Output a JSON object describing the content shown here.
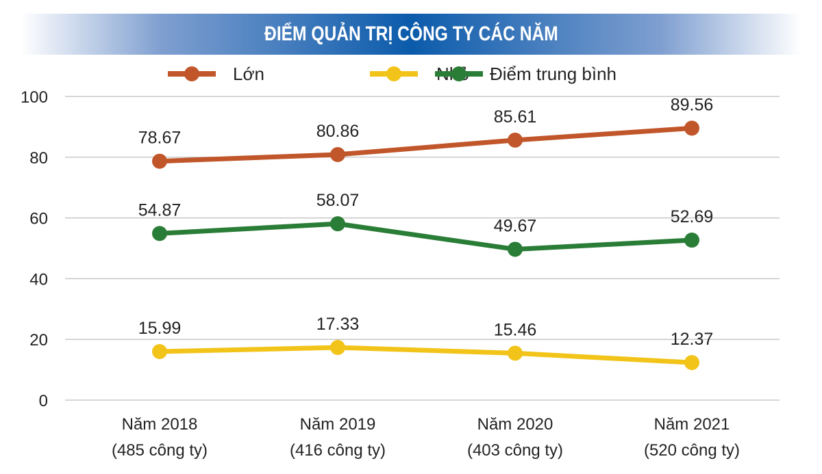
{
  "chart_data": {
    "type": "line",
    "title": "ĐIỂM QUẢN TRỊ CÔNG TY CÁC NĂM",
    "categories": [
      [
        "Năm 2018",
        "(485 công ty)"
      ],
      [
        "Năm 2019",
        "(416 công ty)"
      ],
      [
        "Năm 2020",
        "(403 công ty)"
      ],
      [
        "Năm 2021",
        "(520 công ty)"
      ]
    ],
    "ylim": [
      0,
      100
    ],
    "yticks": [
      "0",
      "20",
      "40",
      "60",
      "80",
      "100"
    ],
    "grid": true,
    "legend_position": "top-center",
    "series": [
      {
        "name": "Lớn",
        "color": "#c0562a",
        "values": [
          78.67,
          80.86,
          85.61,
          89.56
        ],
        "labels": [
          "78.67",
          "80.86",
          "85.61",
          "89.56"
        ]
      },
      {
        "name": "Nhỏ",
        "color": "#f2c41a",
        "values": [
          15.99,
          17.33,
          15.46,
          12.37
        ],
        "labels": [
          "15.99",
          "17.33",
          "15.46",
          "12.37"
        ]
      },
      {
        "name": "Điểm trung bình",
        "color": "#2a7d36",
        "values": [
          54.87,
          58.07,
          49.67,
          52.69
        ],
        "labels": [
          "54.87",
          "58.07",
          "49.67",
          "52.69"
        ]
      }
    ]
  }
}
